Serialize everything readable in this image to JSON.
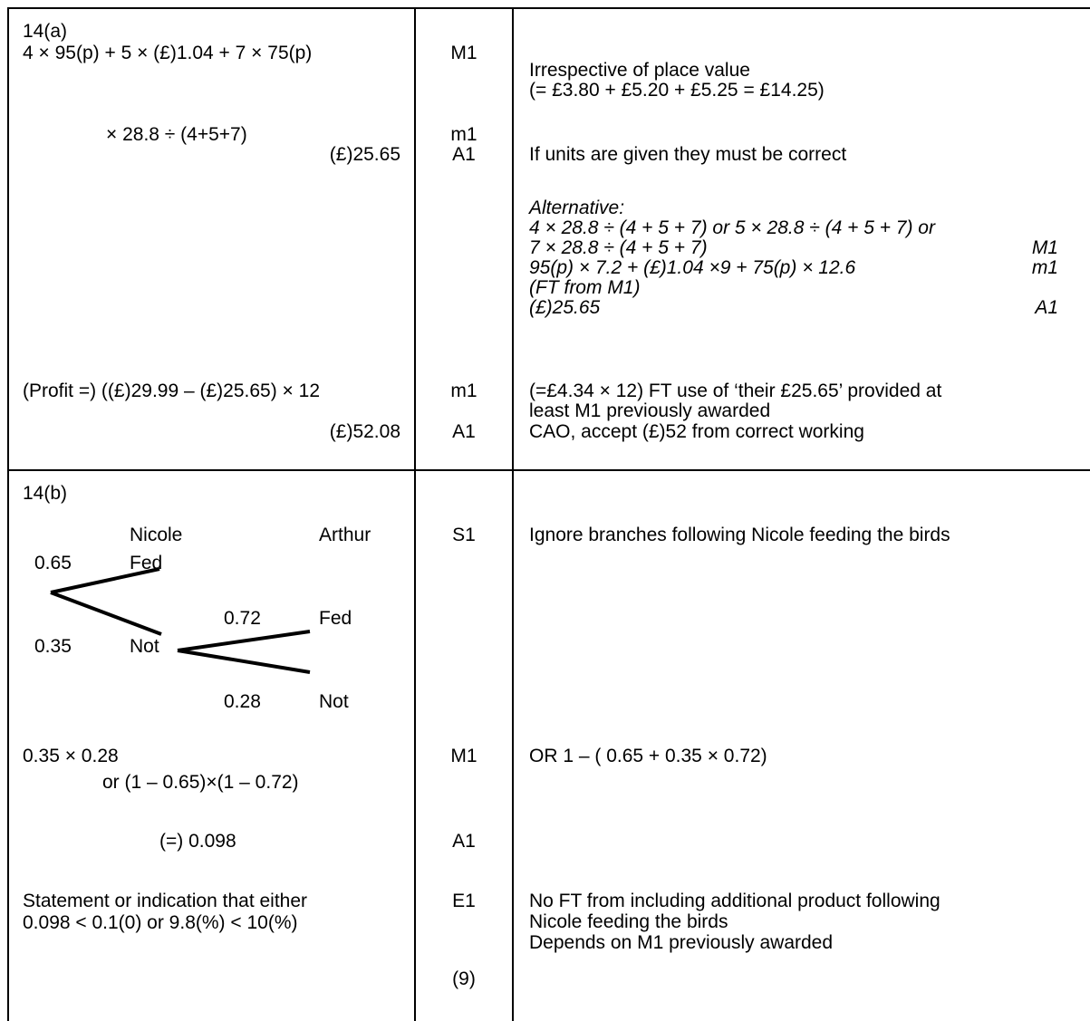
{
  "a": {
    "label": "14(a)",
    "work1": "4 × 95(p) + 5 × (£)1.04 + 7 × 75(p)",
    "work2": "× 28.8 ÷ (4+5+7)",
    "work3": "(£)25.65",
    "work4": "(Profit =) ((£)29.99 – (£)25.65) × 12",
    "work5": "(£)52.08",
    "mark1": "M1",
    "mark2": "m1",
    "mark3": "A1",
    "mark4": "m1",
    "mark5": "A1",
    "note1a": "Irrespective of place value",
    "note1b": "(= £3.80 + £5.20 +  £5.25 = £14.25)",
    "note2": "If units are given they must be correct",
    "alt_title": "Alternative:",
    "alt_l1": "4 × 28.8 ÷ (4 + 5 + 7) or 5 × 28.8 ÷ (4 + 5 + 7) or",
    "alt_l2": "7 × 28.8 ÷ (4 + 5 + 7)",
    "alt_l2_mark": "M1",
    "alt_l3": "95(p) × 7.2 + (£)1.04 ×9 + 75(p) × 12.6",
    "alt_l3_mark": "m1",
    "alt_l4": "(FT from M1)",
    "alt_l5": "(£)25.65",
    "alt_l5_mark": "A1",
    "note4a": "(=£4.34 × 12) FT use of ‘their £25.65’ provided at",
    "note4b": "least M1 previously awarded",
    "note5": "CAO, accept (£)52 from correct working"
  },
  "b": {
    "label": "14(b)",
    "tree": {
      "head_nicole": "Nicole",
      "head_arthur": "Arthur",
      "p_fed": "0.65",
      "n_fed": "Fed",
      "p_not": "0.35",
      "n_not": "Not",
      "p_a_fed": "0.72",
      "a_fed": "Fed",
      "p_a_not": "0.28",
      "a_not": "Not"
    },
    "work1a": "0.35 × 0.28",
    "work1b": "or (1 – 0.65)×(1 – 0.72)",
    "work2": "(=) 0.098",
    "work3a": "Statement or indication that either",
    "work3b": "0.098 < 0.1(0) or 9.8(%) < 10(%)",
    "mark_s1": "S1",
    "mark_m1": "M1",
    "mark_a1": "A1",
    "mark_e1": "E1",
    "total": "(9)",
    "note_s1": "Ignore branches following Nicole feeding the birds",
    "note_m1": "OR 1 – ( 0.65 + 0.35 × 0.72)",
    "note_e1a": "No FT from including additional product following",
    "note_e1b": "Nicole feeding the birds",
    "note_e1c": "Depends on M1 previously awarded"
  }
}
